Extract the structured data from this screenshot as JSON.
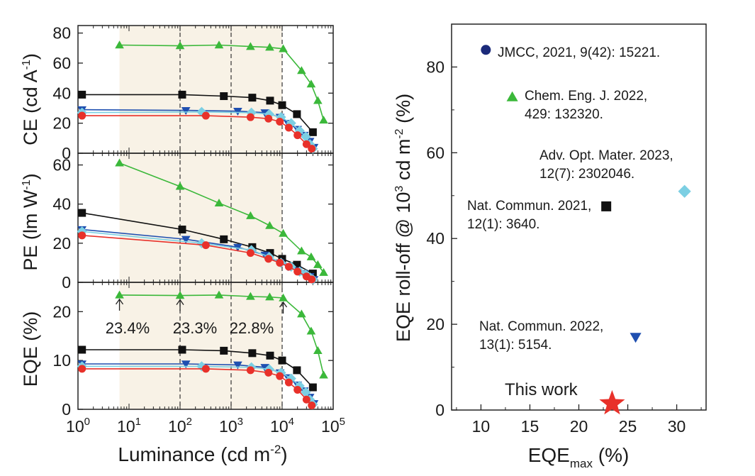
{
  "left_panel": {
    "xlabel": "Luminance (cd m",
    "xlabel_sup": "-2",
    "xlabel_tail": ")",
    "x_ticks": [
      {
        "base": "10",
        "exp": "0",
        "v": 1
      },
      {
        "base": "10",
        "exp": "1",
        "v": 10
      },
      {
        "base": "10",
        "exp": "2",
        "v": 100
      },
      {
        "base": "10",
        "exp": "3",
        "v": 1000
      },
      {
        "base": "10",
        "exp": "4",
        "v": 10000
      },
      {
        "base": "10",
        "exp": "5",
        "v": 100000
      }
    ],
    "ce_label": "CE (cd A",
    "ce_label_sup": "-1",
    "ce_label_tail": ")",
    "pe_label": "PE (lm W",
    "pe_label_sup": "-1",
    "pe_label_tail": ")",
    "eqe_label": "EQE (%)",
    "annotations": [
      "23.4%",
      "23.3%",
      "22.8%"
    ]
  },
  "right_panel": {
    "xlabel_main": "EQE",
    "xlabel_sub": "max",
    "xlabel_tail": " (%)",
    "ylabel_main": "EQE roll-off @ 10",
    "ylabel_sup": "3",
    "ylabel_mid": " cd m",
    "ylabel_sup2": "-2",
    "ylabel_tail": " (%)",
    "this_work": "This work",
    "refs": [
      {
        "lines": [
          "JMCC, 2021, 9(42): 15221."
        ]
      },
      {
        "lines": [
          "Chem. Eng. J. 2022,",
          "429: 132320."
        ]
      },
      {
        "lines": [
          "Adv. Opt. Mater. 2023,",
          "12(7): 2302046."
        ]
      },
      {
        "lines": [
          "Nat. Commun. 2021,",
          "12(1): 3640."
        ]
      },
      {
        "lines": [
          "Nat. Commun. 2022,",
          "13(1): 5154."
        ]
      }
    ]
  },
  "colors": {
    "green": "#3bb83a",
    "black": "#111111",
    "navy": "#1f4fb0",
    "cyan": "#7ccfe3",
    "red": "#e8312a",
    "darknavy": "#1b2a7a",
    "shade": "#f8f2e6"
  },
  "chart_data": [
    {
      "type": "line",
      "xlabel": "Luminance (cd m-2)",
      "ylabel": "CE (cd A-1)",
      "x_scale": "log",
      "xlim": [
        1,
        100000
      ],
      "ylim": [
        0,
        85
      ],
      "y_ticks": [
        0,
        20,
        40,
        60,
        80
      ],
      "series": [
        {
          "color": "green",
          "marker": "triangle-up",
          "points": [
            [
              6.5,
              72
            ],
            [
              100,
              71.5
            ],
            [
              580,
              72
            ],
            [
              2400,
              71
            ],
            [
              5700,
              70.5
            ],
            [
              10500,
              69.5
            ],
            [
              24000,
              55
            ],
            [
              37000,
              46
            ],
            [
              50000,
              35
            ],
            [
              65000,
              22
            ]
          ]
        },
        {
          "color": "black",
          "marker": "square",
          "points": [
            [
              1.2,
              39
            ],
            [
              110,
              39
            ],
            [
              720,
              38
            ],
            [
              2600,
              37
            ],
            [
              5800,
              35
            ],
            [
              10000,
              32
            ],
            [
              19500,
              26
            ],
            [
              40000,
              14
            ]
          ]
        },
        {
          "color": "navy",
          "marker": "triangle-down",
          "points": [
            [
              1.2,
              29
            ],
            [
              130,
              28.5
            ],
            [
              1350,
              28
            ],
            [
              4600,
              27
            ],
            [
              9100,
              24
            ],
            [
              13000,
              20
            ],
            [
              20000,
              16
            ],
            [
              27000,
              12
            ],
            [
              35000,
              8
            ],
            [
              42000,
              4
            ]
          ]
        },
        {
          "color": "cyan",
          "marker": "diamond",
          "points": [
            [
              1.2,
              27
            ],
            [
              265,
              27.5
            ],
            [
              2500,
              27
            ],
            [
              5600,
              26
            ],
            [
              9500,
              24
            ],
            [
              15000,
              20
            ],
            [
              22000,
              15
            ],
            [
              29000,
              11
            ],
            [
              35000,
              6
            ],
            [
              40000,
              3
            ]
          ]
        },
        {
          "color": "red",
          "marker": "circle",
          "points": [
            [
              1.2,
              25
            ],
            [
              320,
              25
            ],
            [
              2400,
              24
            ],
            [
              5400,
              23
            ],
            [
              9000,
              21
            ],
            [
              13500,
              17
            ],
            [
              20000,
              12
            ],
            [
              30000,
              6
            ],
            [
              38000,
              3
            ]
          ]
        }
      ]
    },
    {
      "type": "line",
      "xlabel": "Luminance (cd m-2)",
      "ylabel": "PE (lm W-1)",
      "x_scale": "log",
      "xlim": [
        1,
        100000
      ],
      "ylim": [
        0,
        66
      ],
      "y_ticks": [
        0,
        20,
        40,
        60
      ],
      "series": [
        {
          "color": "green",
          "marker": "triangle-up",
          "points": [
            [
              6.5,
              61
            ],
            [
              100,
              49
            ],
            [
              580,
              40.5
            ],
            [
              2400,
              34
            ],
            [
              5700,
              29
            ],
            [
              10500,
              25
            ],
            [
              24000,
              16
            ],
            [
              37000,
              13
            ],
            [
              50000,
              9
            ],
            [
              65000,
              5
            ]
          ]
        },
        {
          "color": "black",
          "marker": "square",
          "points": [
            [
              1.2,
              35.5
            ],
            [
              110,
              27
            ],
            [
              720,
              22
            ],
            [
              2600,
              18
            ],
            [
              5800,
              15
            ],
            [
              10000,
              12
            ],
            [
              19500,
              9
            ],
            [
              40000,
              4.5
            ]
          ]
        },
        {
          "color": "navy",
          "marker": "triangle-down",
          "points": [
            [
              1.2,
              27
            ],
            [
              130,
              22
            ],
            [
              1350,
              18
            ],
            [
              4600,
              14
            ],
            [
              9100,
              10
            ],
            [
              13000,
              8
            ],
            [
              20000,
              6
            ],
            [
              27000,
              4.5
            ],
            [
              35000,
              3
            ],
            [
              42000,
              1.5
            ]
          ]
        },
        {
          "color": "cyan",
          "marker": "diamond",
          "points": [
            [
              1.2,
              26
            ],
            [
              265,
              20
            ],
            [
              2500,
              16.5
            ],
            [
              5600,
              13
            ],
            [
              9500,
              10
            ],
            [
              15000,
              8
            ],
            [
              22000,
              5.5
            ],
            [
              29000,
              4
            ],
            [
              35000,
              2.5
            ],
            [
              40000,
              1.5
            ]
          ]
        },
        {
          "color": "red",
          "marker": "circle",
          "points": [
            [
              1.2,
              24
            ],
            [
              320,
              19
            ],
            [
              2400,
              15
            ],
            [
              5400,
              12
            ],
            [
              9000,
              10
            ],
            [
              13500,
              8
            ],
            [
              20000,
              5.5
            ],
            [
              30000,
              3
            ],
            [
              38000,
              1.5
            ]
          ]
        }
      ]
    },
    {
      "type": "line",
      "xlabel": "Luminance (cd m-2)",
      "ylabel": "EQE (%)",
      "x_scale": "log",
      "xlim": [
        1,
        100000
      ],
      "ylim": [
        0,
        26
      ],
      "y_ticks": [
        0,
        10,
        20
      ],
      "series": [
        {
          "color": "green",
          "marker": "triangle-up",
          "points": [
            [
              6.5,
              23.4
            ],
            [
              100,
              23.3
            ],
            [
              580,
              23.4
            ],
            [
              2400,
              23.1
            ],
            [
              5700,
              23
            ],
            [
              10500,
              22.8
            ],
            [
              24000,
              19.5
            ],
            [
              37000,
              16
            ],
            [
              50000,
              12
            ],
            [
              65000,
              7
            ]
          ]
        },
        {
          "color": "black",
          "marker": "square",
          "points": [
            [
              1.2,
              12.2
            ],
            [
              110,
              12.2
            ],
            [
              720,
              12
            ],
            [
              2600,
              11.5
            ],
            [
              5800,
              11
            ],
            [
              10000,
              10
            ],
            [
              19500,
              8
            ],
            [
              40000,
              4.5
            ]
          ]
        },
        {
          "color": "navy",
          "marker": "triangle-down",
          "points": [
            [
              1.2,
              9.3
            ],
            [
              130,
              9.3
            ],
            [
              1350,
              9.1
            ],
            [
              4600,
              8.6
            ],
            [
              9100,
              7.5
            ],
            [
              13000,
              6.5
            ],
            [
              20000,
              5
            ],
            [
              27000,
              3.8
            ],
            [
              35000,
              2.5
            ],
            [
              42000,
              1.2
            ]
          ]
        },
        {
          "color": "cyan",
          "marker": "diamond",
          "points": [
            [
              1.2,
              8.8
            ],
            [
              265,
              8.8
            ],
            [
              2500,
              8.6
            ],
            [
              5600,
              8.2
            ],
            [
              9500,
              7.5
            ],
            [
              15000,
              6.3
            ],
            [
              22000,
              4.8
            ],
            [
              29000,
              3.5
            ],
            [
              35000,
              2
            ],
            [
              40000,
              1
            ]
          ]
        },
        {
          "color": "red",
          "marker": "circle",
          "points": [
            [
              1.2,
              8.3
            ],
            [
              320,
              8.3
            ],
            [
              2400,
              8
            ],
            [
              5400,
              7.5
            ],
            [
              9000,
              6.8
            ],
            [
              13500,
              5.5
            ],
            [
              20000,
              4
            ],
            [
              30000,
              2
            ],
            [
              38000,
              0.8
            ]
          ]
        }
      ],
      "annotations": [
        {
          "text": "23.4%",
          "x": 6.5,
          "y": 23.4
        },
        {
          "text": "23.3%",
          "x": 100,
          "y": 23.3
        },
        {
          "text": "22.8%",
          "x": 10500,
          "y": 22.8
        }
      ]
    },
    {
      "type": "scatter",
      "xlabel": "EQEmax (%)",
      "ylabel": "EQE roll-off @ 103 cd m-2 (%)",
      "xlim": [
        7,
        33
      ],
      "ylim": [
        0,
        90
      ],
      "x_ticks": [
        10,
        15,
        20,
        25,
        30
      ],
      "y_ticks": [
        0,
        20,
        40,
        60,
        80
      ],
      "points": [
        {
          "label": "JMCC, 2021, 9(42): 15221.",
          "x": 10.5,
          "y": 84,
          "marker": "circle",
          "color": "darknavy"
        },
        {
          "label": "Chem. Eng. J. 2022, 429: 132320.",
          "x": 13.2,
          "y": 73,
          "marker": "triangle-up",
          "color": "green"
        },
        {
          "label": "Adv. Opt. Mater. 2023, 12(7): 2302046.",
          "x": 30.8,
          "y": 51,
          "marker": "diamond",
          "color": "cyan"
        },
        {
          "label": "Nat. Commun. 2021, 12(1): 3640.",
          "x": 22.8,
          "y": 47.5,
          "marker": "square",
          "color": "black"
        },
        {
          "label": "Nat. Commun. 2022, 13(1): 5154.",
          "x": 25.8,
          "y": 17,
          "marker": "triangle-down",
          "color": "navy"
        },
        {
          "label": "This work",
          "x": 23.4,
          "y": 1.5,
          "marker": "star",
          "color": "red"
        }
      ]
    }
  ]
}
